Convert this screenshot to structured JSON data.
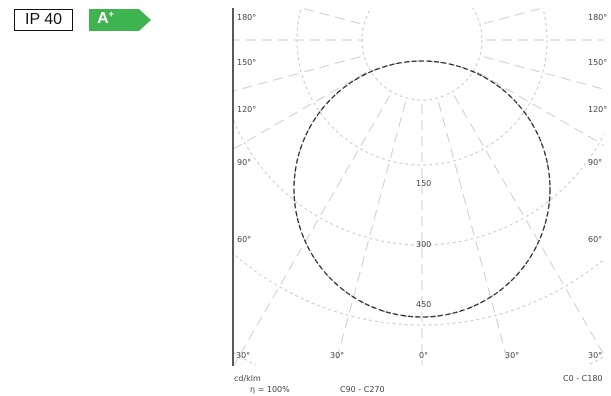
{
  "badges": {
    "ip_rating": "IP 40",
    "energy_class": "A",
    "energy_class_suffix": "+",
    "energy_color": "#3fb34f"
  },
  "diagram": {
    "angle_labels": [
      "180°",
      "150°",
      "120°",
      "90°",
      "60°",
      "30°",
      "0°",
      "30°",
      "60°",
      "90°",
      "120°",
      "150°",
      "180°"
    ],
    "radial_labels": [
      "150",
      "300",
      "450"
    ],
    "unit_left": "cd/klm",
    "unit_right": "C0 - C180",
    "footer_left": "η = 100%",
    "footer_mid": "C90 - C270"
  }
}
